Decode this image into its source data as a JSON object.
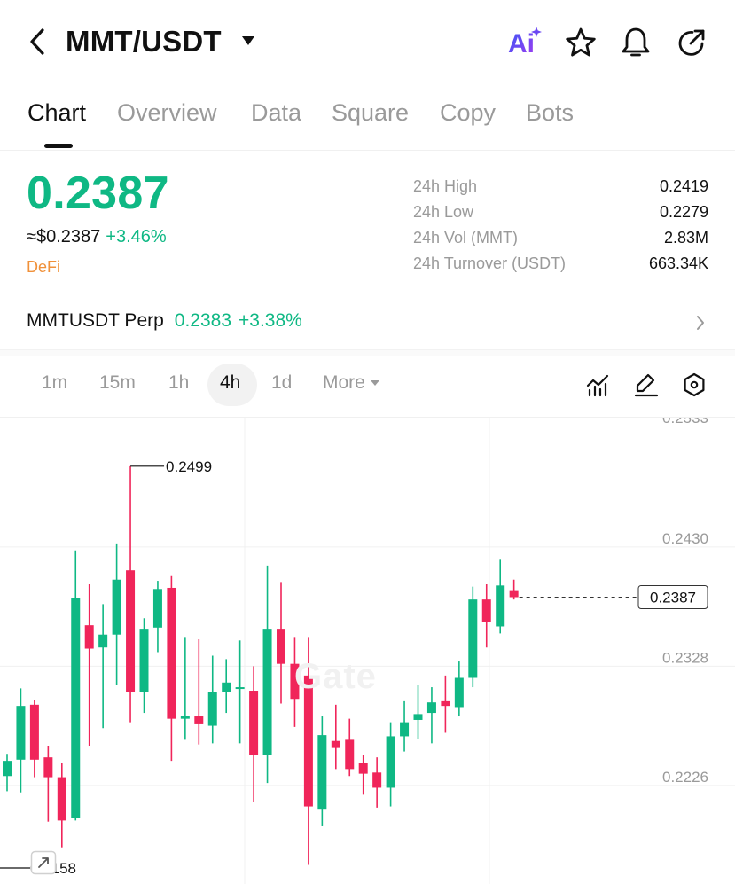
{
  "header": {
    "pair": "MMT/USDT",
    "icons": [
      "back-icon",
      "caret-down-icon",
      "ai-icon",
      "star-icon",
      "bell-icon",
      "share-icon"
    ],
    "ai_label": "Ai"
  },
  "tabs": [
    {
      "label": "Chart",
      "active": true
    },
    {
      "label": "Overview",
      "active": false
    },
    {
      "label": "Data",
      "active": false
    },
    {
      "label": "Square",
      "active": false
    },
    {
      "label": "Copy",
      "active": false
    },
    {
      "label": "Bots",
      "active": false
    }
  ],
  "price": {
    "last": "0.2387",
    "fiat": "≈$0.2387",
    "change": "+3.46%",
    "tag": "DeFi"
  },
  "stats": [
    {
      "label": "24h  High",
      "value": "0.2419"
    },
    {
      "label": "24h  Low",
      "value": "0.2279"
    },
    {
      "label": "24h  Vol (MMT)",
      "value": "2.83M"
    },
    {
      "label": "24h  Turnover (USDT)",
      "value": "663.34K"
    }
  ],
  "perp": {
    "name": "MMTUSDT Perp",
    "price": "0.2383",
    "change": "+3.38%"
  },
  "intervals": [
    {
      "label": "1m",
      "active": false
    },
    {
      "label": "15m",
      "active": false
    },
    {
      "label": "1h",
      "active": false
    },
    {
      "label": "4h",
      "active": true
    },
    {
      "label": "1d",
      "active": false
    },
    {
      "label": "More",
      "active": false
    }
  ],
  "toolbar_icons": [
    "indicator-icon",
    "draw-icon",
    "settings-icon"
  ],
  "colors": {
    "up": "#0fb884",
    "down": "#f0255a",
    "accent": "#0fb884",
    "tag": "#f0913a"
  },
  "chart_data": {
    "type": "candlestick",
    "y_ticks": [
      "0.2533",
      "0.2430",
      "0.2328",
      "0.2226"
    ],
    "ylim": [
      0.2125,
      0.2533
    ],
    "high_label": "0.2499",
    "low_label": "0.2158",
    "last_price_label": "0.2387",
    "last_price": 0.2387,
    "watermark": "Gate",
    "grid": true,
    "candles": [
      {
        "o": 0.2234,
        "h": 0.2253,
        "l": 0.2221,
        "c": 0.2247
      },
      {
        "o": 0.2248,
        "h": 0.2309,
        "l": 0.222,
        "c": 0.2294
      },
      {
        "o": 0.2295,
        "h": 0.2299,
        "l": 0.2233,
        "c": 0.2248
      },
      {
        "o": 0.225,
        "h": 0.226,
        "l": 0.2195,
        "c": 0.2233
      },
      {
        "o": 0.2233,
        "h": 0.2245,
        "l": 0.2173,
        "c": 0.2196
      },
      {
        "o": 0.2198,
        "h": 0.2427,
        "l": 0.2196,
        "c": 0.2386
      },
      {
        "o": 0.2363,
        "h": 0.2398,
        "l": 0.226,
        "c": 0.2343
      },
      {
        "o": 0.2344,
        "h": 0.2381,
        "l": 0.2275,
        "c": 0.2355
      },
      {
        "o": 0.2355,
        "h": 0.2433,
        "l": 0.2312,
        "c": 0.2402
      },
      {
        "o": 0.241,
        "h": 0.2499,
        "l": 0.228,
        "c": 0.2306
      },
      {
        "o": 0.2306,
        "h": 0.2369,
        "l": 0.2288,
        "c": 0.236
      },
      {
        "o": 0.2361,
        "h": 0.2401,
        "l": 0.234,
        "c": 0.2394
      },
      {
        "o": 0.2395,
        "h": 0.2405,
        "l": 0.2247,
        "c": 0.2283
      },
      {
        "o": 0.2283,
        "h": 0.2353,
        "l": 0.2265,
        "c": 0.2285
      },
      {
        "o": 0.2285,
        "h": 0.2351,
        "l": 0.2261,
        "c": 0.2279
      },
      {
        "o": 0.2277,
        "h": 0.2337,
        "l": 0.2262,
        "c": 0.2306
      },
      {
        "o": 0.2306,
        "h": 0.2334,
        "l": 0.2288,
        "c": 0.2314
      },
      {
        "o": 0.231,
        "h": 0.235,
        "l": 0.2262,
        "c": 0.231
      },
      {
        "o": 0.2307,
        "h": 0.2328,
        "l": 0.2212,
        "c": 0.2252
      },
      {
        "o": 0.2252,
        "h": 0.2414,
        "l": 0.2228,
        "c": 0.236
      },
      {
        "o": 0.236,
        "h": 0.24,
        "l": 0.2296,
        "c": 0.233
      },
      {
        "o": 0.233,
        "h": 0.2353,
        "l": 0.2276,
        "c": 0.23
      },
      {
        "o": 0.232,
        "h": 0.2353,
        "l": 0.2158,
        "c": 0.2208
      },
      {
        "o": 0.2206,
        "h": 0.2285,
        "l": 0.2191,
        "c": 0.2269
      },
      {
        "o": 0.2264,
        "h": 0.2295,
        "l": 0.224,
        "c": 0.2258
      },
      {
        "o": 0.2265,
        "h": 0.2283,
        "l": 0.2234,
        "c": 0.224
      },
      {
        "o": 0.2245,
        "h": 0.2252,
        "l": 0.2218,
        "c": 0.2236
      },
      {
        "o": 0.2237,
        "h": 0.225,
        "l": 0.2207,
        "c": 0.2224
      },
      {
        "o": 0.2224,
        "h": 0.228,
        "l": 0.2208,
        "c": 0.2268
      },
      {
        "o": 0.2268,
        "h": 0.2298,
        "l": 0.2255,
        "c": 0.228
      },
      {
        "o": 0.2282,
        "h": 0.2312,
        "l": 0.2266,
        "c": 0.2287
      },
      {
        "o": 0.2288,
        "h": 0.231,
        "l": 0.2262,
        "c": 0.2297
      },
      {
        "o": 0.2298,
        "h": 0.232,
        "l": 0.2271,
        "c": 0.2294
      },
      {
        "o": 0.2293,
        "h": 0.2332,
        "l": 0.2285,
        "c": 0.2318
      },
      {
        "o": 0.2318,
        "h": 0.2396,
        "l": 0.231,
        "c": 0.2385
      },
      {
        "o": 0.2385,
        "h": 0.2398,
        "l": 0.2344,
        "c": 0.2366
      },
      {
        "o": 0.2362,
        "h": 0.2419,
        "l": 0.2356,
        "c": 0.2397
      },
      {
        "o": 0.2393,
        "h": 0.2402,
        "l": 0.2385,
        "c": 0.2387
      }
    ]
  }
}
